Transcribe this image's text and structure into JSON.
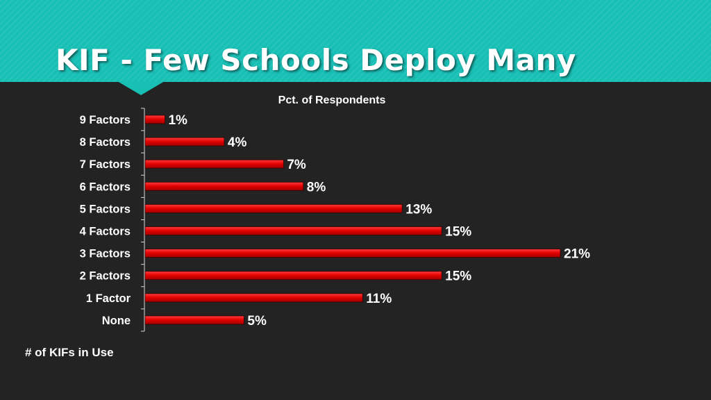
{
  "slide": {
    "title": "KIF - Few Schools Deploy Many"
  },
  "chart_data": {
    "type": "bar",
    "orientation": "horizontal",
    "title": "Pct. of Respondents",
    "ylabel": "# of KIFs in Use",
    "categories": [
      "9 Factors",
      "8 Factors",
      "7 Factors",
      "6 Factors",
      "5 Factors",
      "4 Factors",
      "3 Factors",
      "2 Factors",
      "1 Factor",
      "None"
    ],
    "values": [
      1,
      4,
      7,
      8,
      13,
      15,
      21,
      15,
      11,
      5
    ],
    "value_labels": [
      "1%",
      "4%",
      "7%",
      "8%",
      "13%",
      "15%",
      "21%",
      "15%",
      "11%",
      "5%"
    ],
    "unit": "%",
    "xlim": [
      0,
      21
    ],
    "grid": false,
    "bar_color": "#e00000"
  },
  "colors": {
    "header": "#17bfb5",
    "background": "#232323",
    "text": "#ffffff"
  }
}
